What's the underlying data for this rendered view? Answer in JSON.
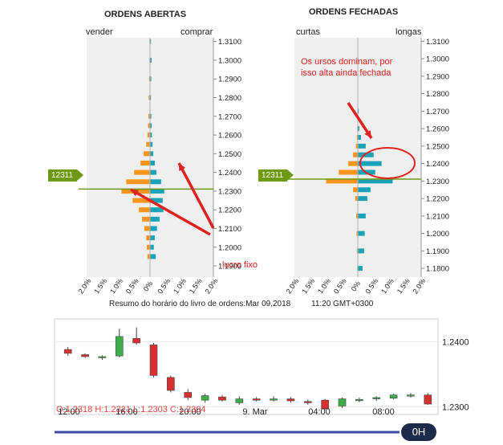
{
  "colors": {
    "buy": "#f7941d",
    "sell": "#1aa2b9",
    "price_line": "#6e9a12",
    "arrow": "#e0221f",
    "bull": "#3cad4a",
    "bear": "#d8302f",
    "nav": "#3b4aa3"
  },
  "header": {
    "open_title": "ORDENS ABERTAS",
    "closed_title": "ORDENS FECHADAS",
    "open_left": "vender",
    "open_right": "comprar",
    "closed_left": "curtas",
    "closed_right": "longas",
    "price_tag": "12311",
    "summary": "Resumo do horário do livro de ordens:Mar 09,2018",
    "summary_time": "11:20 GMT+0300"
  },
  "annotations": {
    "bears": "Os ursos dominam, por\nisso alta ainda fechada",
    "fixed_profit": "lucro fixo"
  },
  "candle_strip": {
    "overlay": "O:1.2318 H:1.2321 L:1.2303 C:1.2304",
    "timeframe": "0H"
  },
  "chart_data": [
    {
      "type": "bar",
      "name": "ORDENS ABERTAS",
      "xlabel": "",
      "ylabel": "",
      "price_axis": [
        "1.3100",
        "1.3000",
        "1.2900",
        "1.2800",
        "1.2700",
        "1.2600",
        "1.2500",
        "1.2400",
        "1.2300",
        "1.2200",
        "1.2100",
        "1.2000",
        "1.1900"
      ],
      "percent_axis": [
        "2.0%",
        "1.5%",
        "1.0%",
        "0.5%",
        "0%",
        "0.5%",
        "1.0%",
        "1.5%",
        "2.0%"
      ],
      "ylim": [
        1.184,
        1.312
      ],
      "xlim": [
        -2.0,
        2.0
      ],
      "current_price": 1.2311,
      "levels": [
        1.195,
        1.2,
        1.205,
        1.21,
        1.215,
        1.22,
        1.225,
        1.23,
        1.235,
        1.24,
        1.245,
        1.25,
        1.255,
        1.26,
        1.265,
        1.27,
        1.28,
        1.29,
        1.3,
        1.31
      ],
      "series": [
        {
          "name": "vender",
          "side": "left",
          "values": [
            0.08,
            0.1,
            0.12,
            0.18,
            0.25,
            0.35,
            0.55,
            0.9,
            0.75,
            0.5,
            0.3,
            0.2,
            0.12,
            0.08,
            0.06,
            0.05,
            0.04,
            0.03,
            0.02,
            0.02
          ]
        },
        {
          "name": "comprar",
          "side": "right",
          "values": [
            0.18,
            0.12,
            0.15,
            0.22,
            0.3,
            0.42,
            0.4,
            0.45,
            0.35,
            0.2,
            0.15,
            0.1,
            0.08,
            0.06,
            0.05,
            0.04,
            0.03,
            0.04,
            0.05,
            0.03
          ]
        }
      ]
    },
    {
      "type": "bar",
      "name": "ORDENS FECHADAS",
      "xlabel": "",
      "ylabel": "",
      "price_axis": [
        "1.3100",
        "1.3000",
        "1.2900",
        "1.2800",
        "1.2700",
        "1.2600",
        "1.2500",
        "1.2400",
        "1.2300",
        "1.2200",
        "1.2100",
        "1.2000",
        "1.1900",
        "1.1800"
      ],
      "percent_axis": [
        "2.0%",
        "1.5%",
        "1.0%",
        "0.5%",
        "0%",
        "0.5%",
        "1.0%",
        "1.5%",
        "2.0%"
      ],
      "ylim": [
        1.175,
        1.312
      ],
      "xlim": [
        -2.0,
        2.0
      ],
      "current_price": 1.2311,
      "levels": [
        1.18,
        1.19,
        1.2,
        1.21,
        1.22,
        1.225,
        1.23,
        1.235,
        1.24,
        1.245,
        1.25,
        1.255,
        1.26,
        1.27
      ],
      "series": [
        {
          "name": "curtas",
          "side": "left",
          "values": [
            0.02,
            0.03,
            0.04,
            0.05,
            0.08,
            0.15,
            1.0,
            0.6,
            0.3,
            0.15,
            0.06,
            0.03,
            0.02,
            0.01
          ]
        },
        {
          "name": "longas",
          "side": "right",
          "values": [
            0.15,
            0.2,
            0.22,
            0.25,
            0.3,
            0.4,
            1.1,
            0.55,
            0.75,
            0.5,
            0.25,
            0.1,
            0.05,
            0.03
          ]
        }
      ]
    },
    {
      "type": "candlestick",
      "name": "resumo",
      "x_labels": [
        "12:00",
        "16:00",
        "20:00",
        "9. Mar",
        "04:00",
        "08:00"
      ],
      "y_labels": [
        "1.2400",
        "1.2300"
      ],
      "ylim": [
        1.2288,
        1.2435
      ],
      "candles": [
        {
          "o": 1.2388,
          "c": 1.2382,
          "h": 1.2392,
          "l": 1.2378
        },
        {
          "o": 1.238,
          "c": 1.2377,
          "h": 1.2382,
          "l": 1.2375
        },
        {
          "o": 1.2376,
          "c": 1.2377,
          "h": 1.2379,
          "l": 1.2372
        },
        {
          "o": 1.2378,
          "c": 1.2408,
          "h": 1.242,
          "l": 1.2376
        },
        {
          "o": 1.2405,
          "c": 1.2398,
          "h": 1.2422,
          "l": 1.2395
        },
        {
          "o": 1.2395,
          "c": 1.2348,
          "h": 1.2398,
          "l": 1.2345
        },
        {
          "o": 1.2345,
          "c": 1.2325,
          "h": 1.2348,
          "l": 1.2322
        },
        {
          "o": 1.2322,
          "c": 1.2314,
          "h": 1.2327,
          "l": 1.231
        },
        {
          "o": 1.231,
          "c": 1.2317,
          "h": 1.232,
          "l": 1.2306
        },
        {
          "o": 1.2315,
          "c": 1.231,
          "h": 1.2318,
          "l": 1.2308
        },
        {
          "o": 1.2306,
          "c": 1.2312,
          "h": 1.2316,
          "l": 1.2303
        },
        {
          "o": 1.2312,
          "c": 1.231,
          "h": 1.2315,
          "l": 1.2308
        },
        {
          "o": 1.231,
          "c": 1.2312,
          "h": 1.2316,
          "l": 1.2308
        },
        {
          "o": 1.2312,
          "c": 1.2309,
          "h": 1.2315,
          "l": 1.2306
        },
        {
          "o": 1.2308,
          "c": 1.2306,
          "h": 1.2311,
          "l": 1.2303
        },
        {
          "o": 1.231,
          "c": 1.2297,
          "h": 1.2312,
          "l": 1.2295
        },
        {
          "o": 1.2301,
          "c": 1.2312,
          "h": 1.2314,
          "l": 1.2298
        },
        {
          "o": 1.231,
          "c": 1.2311,
          "h": 1.2314,
          "l": 1.2307
        },
        {
          "o": 1.2312,
          "c": 1.2314,
          "h": 1.2316,
          "l": 1.2309
        },
        {
          "o": 1.2313,
          "c": 1.2318,
          "h": 1.232,
          "l": 1.2311
        },
        {
          "o": 1.2318,
          "c": 1.2318,
          "h": 1.2321,
          "l": 1.2314
        },
        {
          "o": 1.2318,
          "c": 1.2304,
          "h": 1.2321,
          "l": 1.2303
        }
      ]
    }
  ]
}
